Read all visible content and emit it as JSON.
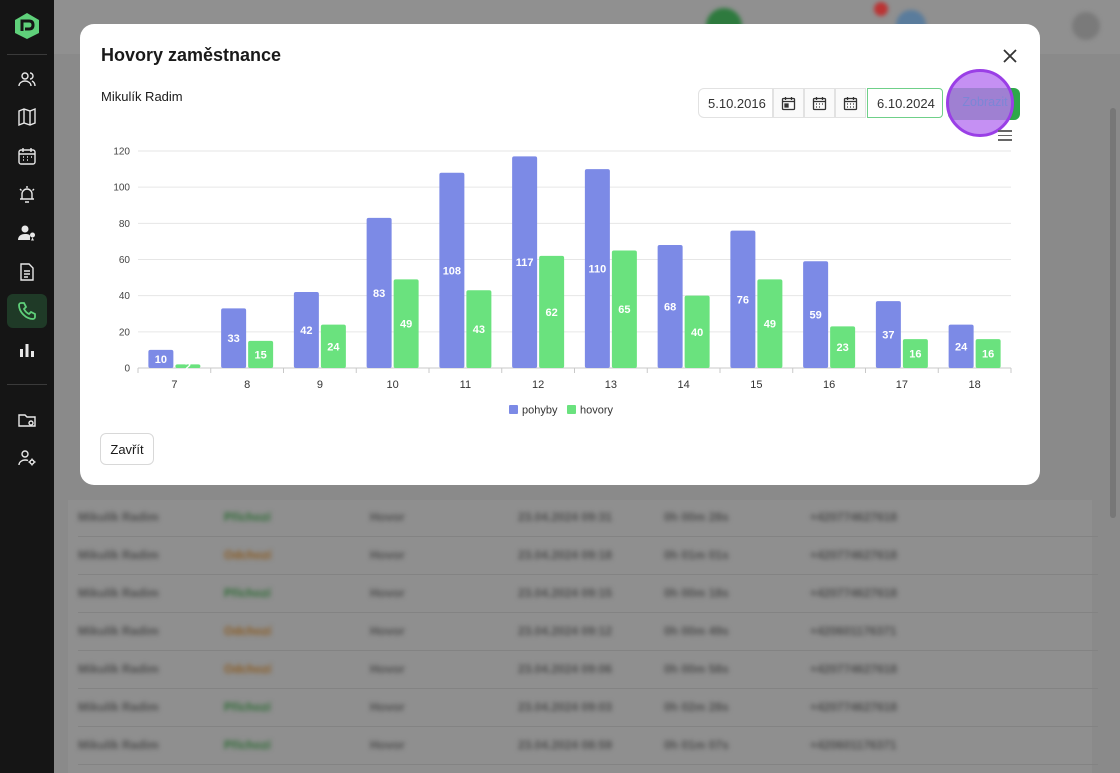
{
  "modal": {
    "title": "Hovory zaměstnance",
    "employee": "Mikulík Radim",
    "date_from": "5.10.2016",
    "date_to": "6.10.2024",
    "show_label": "Zobrazit",
    "close_label": "Zavřít"
  },
  "colors": {
    "series1": "#7c8ae6",
    "series2": "#6ae27e",
    "accent": "#2ea84a",
    "highlight": "#b878f0"
  },
  "chart_data": {
    "type": "bar",
    "categories": [
      "7",
      "8",
      "9",
      "10",
      "11",
      "12",
      "13",
      "14",
      "15",
      "16",
      "17",
      "18"
    ],
    "series": [
      {
        "name": "pohyby",
        "values": [
          10,
          33,
          42,
          83,
          108,
          117,
          110,
          68,
          76,
          59,
          37,
          24
        ]
      },
      {
        "name": "hovory",
        "values": [
          2,
          15,
          24,
          49,
          43,
          62,
          65,
          40,
          49,
          23,
          16,
          16
        ]
      }
    ],
    "yticks": [
      "0",
      "20",
      "40",
      "60",
      "80",
      "100",
      "120"
    ],
    "ylim": [
      0,
      120
    ],
    "grid": true,
    "legend": "bottom-center"
  },
  "background_rows": [
    {
      "name": "Mikulík Radim",
      "type": "Příchozí",
      "kind": "Hovor",
      "time": "23.04.2024 09:31",
      "duration": "0h 00m 28s",
      "phone": "+420774627618"
    },
    {
      "name": "Mikulík Radim",
      "type": "Odchozí",
      "kind": "Hovor",
      "time": "23.04.2024 09:18",
      "duration": "0h 01m 01s",
      "phone": "+420774627618"
    },
    {
      "name": "Mikulík Radim",
      "type": "Příchozí",
      "kind": "Hovor",
      "time": "23.04.2024 09:15",
      "duration": "0h 00m 18s",
      "phone": "+420774627618"
    },
    {
      "name": "Mikulík Radim",
      "type": "Odchozí",
      "kind": "Hovor",
      "time": "23.04.2024 09:12",
      "duration": "0h 00m 49s",
      "phone": "+420601176371"
    },
    {
      "name": "Mikulík Radim",
      "type": "Odchozí",
      "kind": "Hovor",
      "time": "23.04.2024 09:06",
      "duration": "0h 00m 58s",
      "phone": "+420774627618"
    },
    {
      "name": "Mikulík Radim",
      "type": "Příchozí",
      "kind": "Hovor",
      "time": "23.04.2024 09:03",
      "duration": "0h 02m 28s",
      "phone": "+420774627618"
    },
    {
      "name": "Mikulík Radim",
      "type": "Příchozí",
      "kind": "Hovor",
      "time": "23.04.2024 08:59",
      "duration": "0h 01m 07s",
      "phone": "+420601176371"
    }
  ],
  "sidebar": {
    "icons": [
      "users-icon",
      "map-icon",
      "calendar-icon",
      "alarm-icon",
      "user-location-icon",
      "document-icon",
      "phone-icon",
      "bar-chart-icon",
      "folder-settings-icon",
      "user-settings-icon"
    ]
  }
}
